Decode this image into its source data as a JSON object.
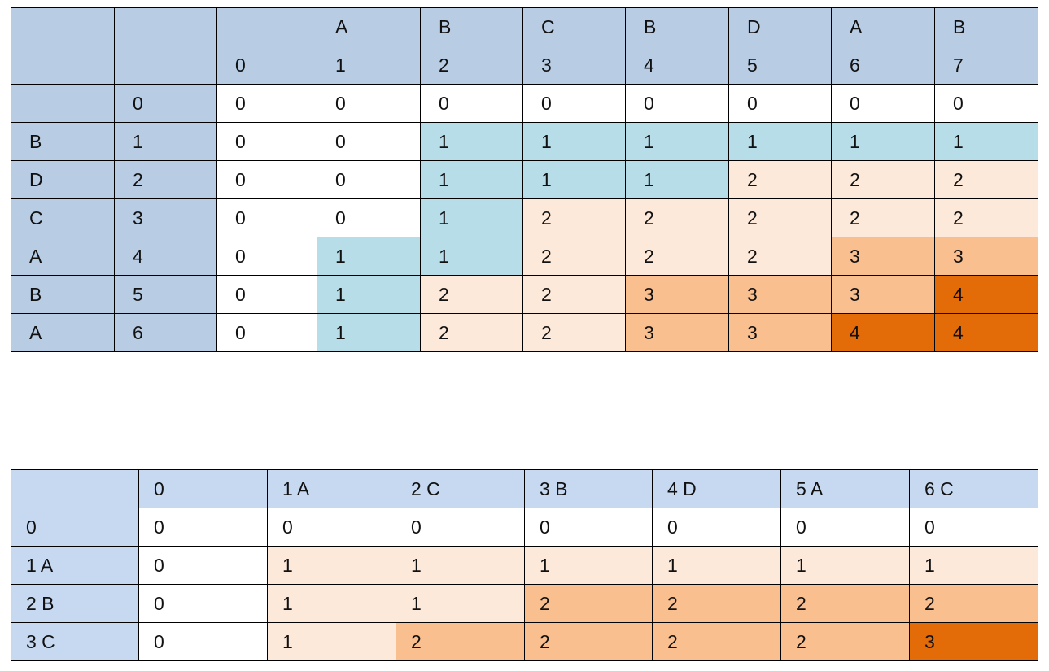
{
  "table1": {
    "header_letters": [
      "",
      "",
      "",
      "A",
      "B",
      "C",
      "B",
      "D",
      "A",
      "B"
    ],
    "header_indices": [
      "",
      "",
      "0",
      "1",
      "2",
      "3",
      "4",
      "5",
      "6",
      "7"
    ],
    "rows": [
      {
        "letter": "",
        "index": "0",
        "cells": [
          "0",
          "0",
          "0",
          "0",
          "0",
          "0",
          "0",
          "0"
        ],
        "shade": [
          "w",
          "w",
          "w",
          "w",
          "w",
          "w",
          "w",
          "w"
        ]
      },
      {
        "letter": "B",
        "index": "1",
        "cells": [
          "0",
          "0",
          "1",
          "1",
          "1",
          "1",
          "1",
          "1"
        ],
        "shade": [
          "w",
          "w",
          "b",
          "b",
          "b",
          "b",
          "b",
          "b"
        ]
      },
      {
        "letter": "D",
        "index": "2",
        "cells": [
          "0",
          "0",
          "1",
          "1",
          "1",
          "2",
          "2",
          "2"
        ],
        "shade": [
          "w",
          "w",
          "b",
          "b",
          "b",
          "p",
          "p",
          "p"
        ]
      },
      {
        "letter": "C",
        "index": "3",
        "cells": [
          "0",
          "0",
          "1",
          "2",
          "2",
          "2",
          "2",
          "2"
        ],
        "shade": [
          "w",
          "w",
          "b",
          "p",
          "p",
          "p",
          "p",
          "p"
        ]
      },
      {
        "letter": "A",
        "index": "4",
        "cells": [
          "0",
          "1",
          "1",
          "2",
          "2",
          "2",
          "3",
          "3"
        ],
        "shade": [
          "w",
          "b",
          "b",
          "p",
          "p",
          "p",
          "o",
          "o"
        ]
      },
      {
        "letter": "B",
        "index": "5",
        "cells": [
          "0",
          "1",
          "2",
          "2",
          "3",
          "3",
          "3",
          "4"
        ],
        "shade": [
          "w",
          "b",
          "p",
          "p",
          "o",
          "o",
          "o",
          "d"
        ]
      },
      {
        "letter": "A",
        "index": "6",
        "cells": [
          "0",
          "1",
          "2",
          "2",
          "3",
          "3",
          "4",
          "4"
        ],
        "shade": [
          "w",
          "b",
          "p",
          "p",
          "o",
          "o",
          "d",
          "d"
        ]
      }
    ]
  },
  "table2": {
    "header": [
      "",
      "0",
      "1 A",
      "2 C",
      "3 B",
      "4 D",
      "5 A",
      "6 C"
    ],
    "rows": [
      {
        "label": "0",
        "cells": [
          "0",
          "0",
          "0",
          "0",
          "0",
          "0",
          "0"
        ],
        "shade": [
          "w",
          "w",
          "w",
          "w",
          "w",
          "w",
          "w"
        ]
      },
      {
        "label": "1 A",
        "cells": [
          "0",
          "1",
          "1",
          "1",
          "1",
          "1",
          "1"
        ],
        "shade": [
          "w",
          "p",
          "p",
          "p",
          "p",
          "p",
          "p"
        ]
      },
      {
        "label": "2 B",
        "cells": [
          "0",
          "1",
          "1",
          "2",
          "2",
          "2",
          "2"
        ],
        "shade": [
          "w",
          "p",
          "p",
          "o",
          "o",
          "o",
          "o"
        ]
      },
      {
        "label": "3 C",
        "cells": [
          "0",
          "1",
          "2",
          "2",
          "2",
          "2",
          "3"
        ],
        "shade": [
          "w",
          "p",
          "o",
          "o",
          "o",
          "o",
          "d"
        ]
      }
    ]
  },
  "colors": {
    "header_blue": "#b8cce4",
    "light_blue": "#b7dde8",
    "light_peach": "#fde9d9",
    "orange": "#fabf8f",
    "dark_orange": "#e36c09"
  }
}
